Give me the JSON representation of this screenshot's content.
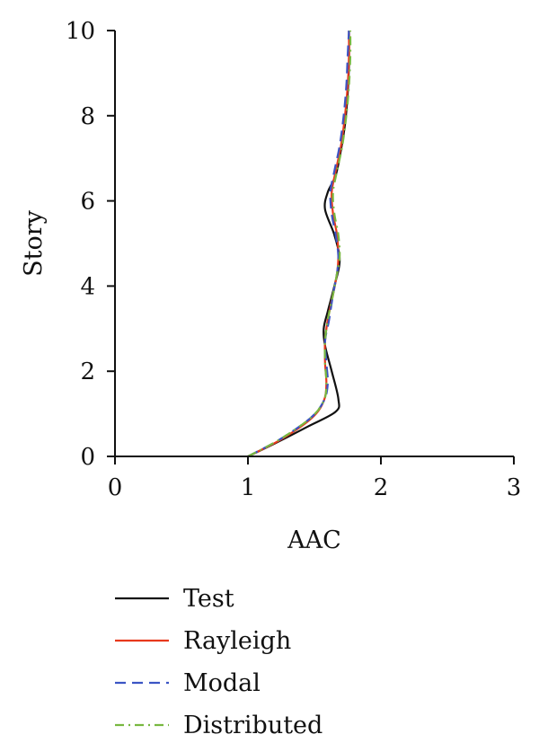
{
  "chart_data": {
    "type": "line",
    "xlabel": "AAC",
    "ylabel": "Story",
    "xlim": [
      0,
      3
    ],
    "ylim": [
      0,
      10
    ],
    "xticks": [
      "0",
      "1",
      "2",
      "3"
    ],
    "yticks": [
      "0",
      "2",
      "4",
      "6",
      "8",
      "10"
    ],
    "grid": false,
    "legend_placement": "bottom",
    "series": [
      {
        "name": "Test",
        "color": "#111111",
        "dash": "solid",
        "points": [
          [
            1.0,
            0
          ],
          [
            1.2,
            0.3
          ],
          [
            1.45,
            0.7
          ],
          [
            1.66,
            1.05
          ],
          [
            1.68,
            1.35
          ],
          [
            1.63,
            2.0
          ],
          [
            1.58,
            2.6
          ],
          [
            1.57,
            3.0
          ],
          [
            1.6,
            3.4
          ],
          [
            1.65,
            4.0
          ],
          [
            1.69,
            4.6
          ],
          [
            1.65,
            5.2
          ],
          [
            1.58,
            5.8
          ],
          [
            1.6,
            6.2
          ],
          [
            1.66,
            6.6
          ],
          [
            1.7,
            7.2
          ],
          [
            1.73,
            7.8
          ],
          [
            1.75,
            8.5
          ],
          [
            1.76,
            9.2
          ],
          [
            1.76,
            10
          ]
        ]
      },
      {
        "name": "Rayleigh",
        "color": "#e8391d",
        "dash": "solid",
        "points": [
          [
            1.0,
            0
          ],
          [
            1.25,
            0.4
          ],
          [
            1.48,
            0.9
          ],
          [
            1.57,
            1.3
          ],
          [
            1.59,
            1.7
          ],
          [
            1.58,
            2.2
          ],
          [
            1.58,
            2.7
          ],
          [
            1.6,
            3.2
          ],
          [
            1.64,
            3.8
          ],
          [
            1.67,
            4.3
          ],
          [
            1.68,
            4.7
          ],
          [
            1.67,
            5.2
          ],
          [
            1.64,
            5.7
          ],
          [
            1.63,
            6.2
          ],
          [
            1.66,
            6.7
          ],
          [
            1.7,
            7.3
          ],
          [
            1.73,
            8.0
          ],
          [
            1.75,
            8.7
          ],
          [
            1.76,
            9.4
          ],
          [
            1.76,
            10
          ]
        ]
      },
      {
        "name": "Modal",
        "color": "#3b55c4",
        "dash": "dashed",
        "points": [
          [
            1.0,
            0
          ],
          [
            1.24,
            0.4
          ],
          [
            1.47,
            0.9
          ],
          [
            1.57,
            1.3
          ],
          [
            1.6,
            1.7
          ],
          [
            1.59,
            2.2
          ],
          [
            1.58,
            2.7
          ],
          [
            1.61,
            3.2
          ],
          [
            1.64,
            3.8
          ],
          [
            1.67,
            4.3
          ],
          [
            1.68,
            4.7
          ],
          [
            1.66,
            5.2
          ],
          [
            1.63,
            5.7
          ],
          [
            1.62,
            6.2
          ],
          [
            1.65,
            6.7
          ],
          [
            1.69,
            7.3
          ],
          [
            1.72,
            8.0
          ],
          [
            1.74,
            8.7
          ],
          [
            1.75,
            9.4
          ],
          [
            1.76,
            10
          ]
        ]
      },
      {
        "name": "Distributed",
        "color": "#78b840",
        "dash": "dashdot",
        "points": [
          [
            1.0,
            0
          ],
          [
            1.24,
            0.4
          ],
          [
            1.47,
            0.9
          ],
          [
            1.57,
            1.3
          ],
          [
            1.59,
            1.7
          ],
          [
            1.58,
            2.2
          ],
          [
            1.58,
            2.7
          ],
          [
            1.6,
            3.2
          ],
          [
            1.64,
            3.8
          ],
          [
            1.67,
            4.3
          ],
          [
            1.69,
            4.7
          ],
          [
            1.68,
            5.2
          ],
          [
            1.65,
            5.7
          ],
          [
            1.64,
            6.2
          ],
          [
            1.67,
            6.7
          ],
          [
            1.71,
            7.3
          ],
          [
            1.74,
            8.0
          ],
          [
            1.76,
            8.7
          ],
          [
            1.77,
            9.4
          ],
          [
            1.77,
            10
          ]
        ]
      }
    ]
  }
}
